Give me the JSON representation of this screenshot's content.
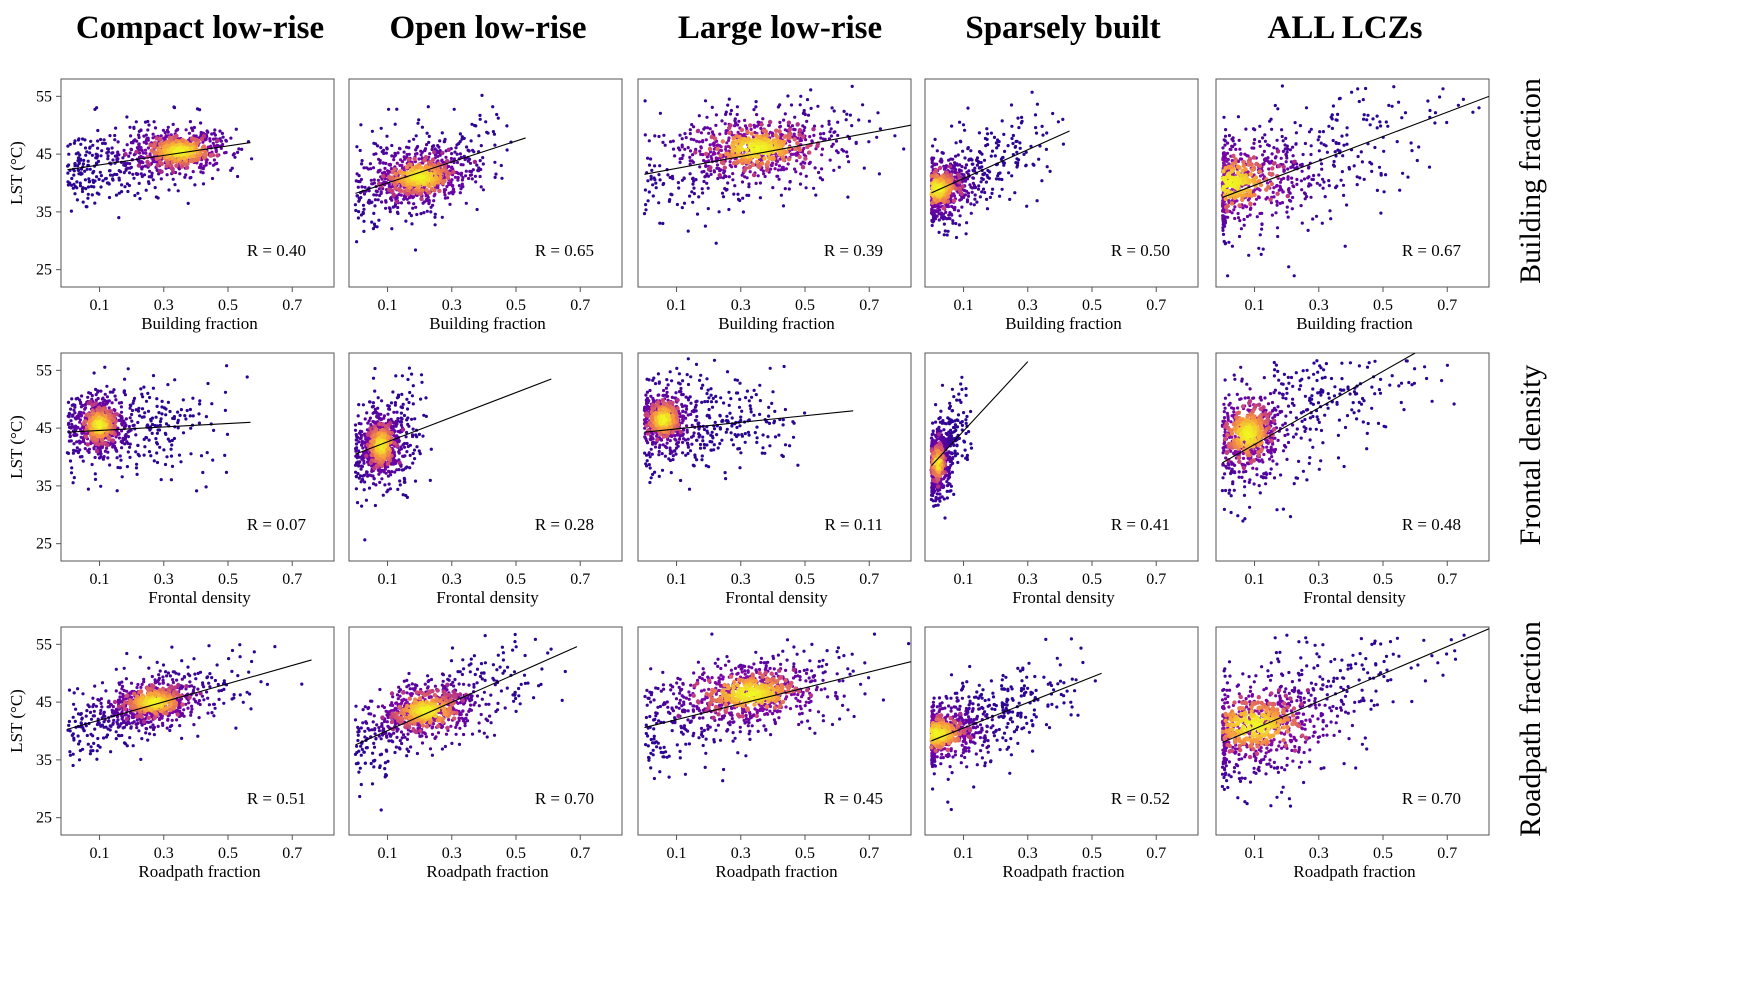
{
  "columns": [
    "Compact low-rise",
    "Open low-rise",
    "Large low-rise",
    "Sparsely built",
    "ALL LCZs"
  ],
  "rows": [
    "Building fraction",
    "Frontal density",
    "Roadpath fraction"
  ],
  "colors": {
    "low": "#2a0593",
    "mid1": "#7e03a8",
    "mid2": "#cc4778",
    "mid3": "#f89540",
    "high": "#f0f921",
    "line": "#000000"
  },
  "chart_data": {
    "type": "scatter",
    "ylabel": "LST (°C)",
    "yticks": [
      25,
      35,
      45,
      55
    ],
    "xticks": [
      0.1,
      0.3,
      0.5,
      0.7
    ],
    "ylim": [
      22,
      58
    ],
    "xlim": [
      -0.02,
      0.83
    ],
    "panels": [
      {
        "row": 0,
        "col": 0,
        "xlabel": "Building fraction",
        "r_label": "R = 0.40",
        "xrange": [
          0,
          0.57
        ],
        "density_center": [
          0.35,
          45.5
        ],
        "spread": [
          0.1,
          2.5
        ],
        "fit": [
          [
            0,
            42.3
          ],
          [
            0.57,
            47
          ]
        ]
      },
      {
        "row": 0,
        "col": 1,
        "xlabel": "Building fraction",
        "r_label": "R = 0.65",
        "xrange": [
          0,
          0.53
        ],
        "density_center": [
          0.2,
          41
        ],
        "spread": [
          0.1,
          3
        ],
        "fit": [
          [
            0,
            38.2
          ],
          [
            0.53,
            47.8
          ]
        ]
      },
      {
        "row": 0,
        "col": 2,
        "xlabel": "Building fraction",
        "r_label": "R = 0.39",
        "xrange": [
          0,
          0.83
        ],
        "density_center": [
          0.35,
          46
        ],
        "spread": [
          0.15,
          3.5
        ],
        "fit": [
          [
            0,
            41.5
          ],
          [
            0.83,
            50
          ]
        ]
      },
      {
        "row": 0,
        "col": 3,
        "xlabel": "Building fraction",
        "r_label": "R = 0.50",
        "xrange": [
          0,
          0.43
        ],
        "density_center": [
          0.02,
          39
        ],
        "spread": [
          0.06,
          3
        ],
        "fit": [
          [
            0,
            38.3
          ],
          [
            0.43,
            49
          ]
        ]
      },
      {
        "row": 0,
        "col": 4,
        "xlabel": "Building fraction",
        "r_label": "R = 0.67",
        "xrange": [
          0,
          0.83
        ],
        "density_center": [
          0.02,
          40
        ],
        "spread": [
          0.15,
          4.5
        ],
        "fit": [
          [
            0,
            37.5
          ],
          [
            0.83,
            55
          ]
        ]
      },
      {
        "row": 1,
        "col": 0,
        "xlabel": "Frontal density",
        "r_label": "R = 0.07",
        "xrange": [
          0,
          0.57
        ],
        "density_center": [
          0.1,
          45.5
        ],
        "spread": [
          0.05,
          3
        ],
        "fit": [
          [
            0,
            44.3
          ],
          [
            0.57,
            46
          ]
        ]
      },
      {
        "row": 1,
        "col": 1,
        "xlabel": "Frontal density",
        "r_label": "R = 0.28",
        "xrange": [
          0,
          0.25
        ],
        "density_center": [
          0.08,
          42
        ],
        "spread": [
          0.04,
          3.5
        ],
        "fit": [
          [
            0,
            40.5
          ],
          [
            0.61,
            53.5
          ]
        ]
      },
      {
        "row": 1,
        "col": 2,
        "xlabel": "Frontal density",
        "r_label": "R = 0.11",
        "xrange": [
          0,
          0.55
        ],
        "density_center": [
          0.06,
          46.5
        ],
        "spread": [
          0.05,
          3
        ],
        "fit": [
          [
            0,
            44.3
          ],
          [
            0.65,
            48
          ]
        ]
      },
      {
        "row": 1,
        "col": 3,
        "xlabel": "Frontal density",
        "r_label": "R = 0.41",
        "xrange": [
          0,
          0.13
        ],
        "density_center": [
          0.02,
          39
        ],
        "spread": [
          0.02,
          3
        ],
        "fit": [
          [
            0,
            38.5
          ],
          [
            0.3,
            56.5
          ]
        ]
      },
      {
        "row": 1,
        "col": 4,
        "xlabel": "Frontal density",
        "r_label": "R = 0.48",
        "xrange": [
          0,
          0.83
        ],
        "density_center": [
          0.08,
          44
        ],
        "spread": [
          0.07,
          4.5
        ],
        "fit": [
          [
            0,
            39
          ],
          [
            0.6,
            58
          ]
        ]
      },
      {
        "row": 2,
        "col": 0,
        "xlabel": "Roadpath fraction",
        "r_label": "R = 0.51",
        "xrange": [
          0,
          0.76
        ],
        "density_center": [
          0.27,
          45
        ],
        "spread": [
          0.09,
          2.5
        ],
        "fit": [
          [
            0,
            40.3
          ],
          [
            0.76,
            52.3
          ]
        ]
      },
      {
        "row": 2,
        "col": 1,
        "xlabel": "Roadpath fraction",
        "r_label": "R = 0.70",
        "xrange": [
          0,
          0.69
        ],
        "density_center": [
          0.22,
          43.5
        ],
        "spread": [
          0.1,
          3
        ],
        "fit": [
          [
            0,
            37.6
          ],
          [
            0.69,
            54.6
          ]
        ]
      },
      {
        "row": 2,
        "col": 2,
        "xlabel": "Roadpath fraction",
        "r_label": "R = 0.45",
        "xrange": [
          0,
          0.83
        ],
        "density_center": [
          0.33,
          46.5
        ],
        "spread": [
          0.15,
          3.5
        ],
        "fit": [
          [
            0,
            40.6
          ],
          [
            0.83,
            52
          ]
        ]
      },
      {
        "row": 2,
        "col": 3,
        "xlabel": "Roadpath fraction",
        "r_label": "R = 0.52",
        "xrange": [
          0,
          0.53
        ],
        "density_center": [
          0.02,
          39.5
        ],
        "spread": [
          0.08,
          3
        ],
        "fit": [
          [
            0,
            38.3
          ],
          [
            0.53,
            50
          ]
        ]
      },
      {
        "row": 2,
        "col": 4,
        "xlabel": "Roadpath fraction",
        "r_label": "R = 0.70",
        "xrange": [
          0,
          0.83
        ],
        "density_center": [
          0.1,
          41
        ],
        "spread": [
          0.15,
          4.5
        ],
        "fit": [
          [
            0,
            38
          ],
          [
            0.83,
            57.7
          ]
        ]
      }
    ]
  }
}
